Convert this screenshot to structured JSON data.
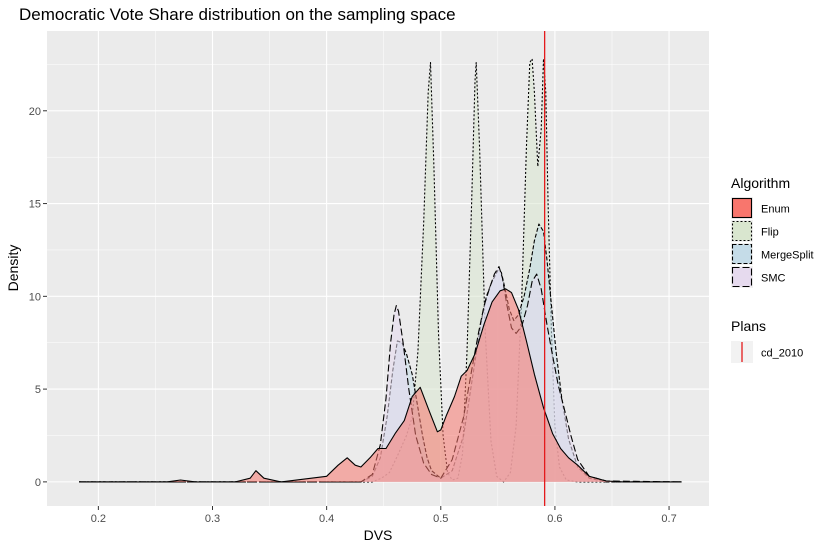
{
  "chart_data": {
    "type": "area",
    "title": "Democratic Vote Share distribution on the sampling space",
    "xlabel": "DVS",
    "ylabel": "Density",
    "xlim": [
      0.155,
      0.735
    ],
    "ylim": [
      -1.3,
      24.3
    ],
    "xticks": [
      0.2,
      0.3,
      0.4,
      0.5,
      0.6,
      0.7
    ],
    "xtick_labels": [
      "0.2",
      "0.3",
      "0.4",
      "0.5",
      "0.6",
      "0.7"
    ],
    "yticks": [
      0,
      5,
      10,
      15,
      20
    ],
    "ytick_labels": [
      "0",
      "5",
      "10",
      "15",
      "20"
    ],
    "grid": true,
    "legend_position": "right",
    "series": [
      {
        "name": "Enum",
        "fill": "#F8766D",
        "line_style": "solid",
        "x": [
          0.183,
          0.26,
          0.272,
          0.285,
          0.32,
          0.333,
          0.338,
          0.345,
          0.36,
          0.4,
          0.41,
          0.418,
          0.425,
          0.43,
          0.438,
          0.445,
          0.452,
          0.46,
          0.468,
          0.475,
          0.482,
          0.49,
          0.497,
          0.5,
          0.505,
          0.512,
          0.518,
          0.523,
          0.53,
          0.538,
          0.545,
          0.552,
          0.557,
          0.562,
          0.568,
          0.575,
          0.582,
          0.59,
          0.598,
          0.605,
          0.612,
          0.62,
          0.63,
          0.645,
          0.66,
          0.711
        ],
        "y": [
          0,
          0,
          0.1,
          0,
          0,
          0.2,
          0.6,
          0.2,
          0,
          0.3,
          0.9,
          1.3,
          0.9,
          0.8,
          1.3,
          1.8,
          1.8,
          2.6,
          3.3,
          4.6,
          5.1,
          3.8,
          2.7,
          2.8,
          3.6,
          4.6,
          5.7,
          6,
          6.9,
          8.5,
          9.7,
          10.3,
          10.4,
          10.2,
          9.3,
          7.6,
          5.8,
          4,
          2.6,
          1.8,
          1.3,
          0.9,
          0.3,
          0.05,
          0,
          0
        ]
      },
      {
        "name": "Flip",
        "fill": "#D9E6CF",
        "line_style": "dotted",
        "x": [
          0.183,
          0.44,
          0.448,
          0.455,
          0.462,
          0.47,
          0.475,
          0.48,
          0.485,
          0.489,
          0.491,
          0.494,
          0.498,
          0.502,
          0.506,
          0.51,
          0.515,
          0.519,
          0.523,
          0.527,
          0.53,
          0.531,
          0.534,
          0.539,
          0.544,
          0.549,
          0.555,
          0.561,
          0.566,
          0.571,
          0.575,
          0.578,
          0.58,
          0.582,
          0.585,
          0.588,
          0.59,
          0.592,
          0.594,
          0.597,
          0.6,
          0.604,
          0.61,
          0.62,
          0.711
        ],
        "y": [
          0,
          0,
          0.2,
          0.5,
          1.4,
          2.5,
          3.5,
          7,
          14,
          21,
          22.6,
          17,
          8,
          2.5,
          0.5,
          0.1,
          0.2,
          1.5,
          7,
          15,
          21.6,
          22.6,
          18,
          8,
          2.2,
          0.3,
          0,
          0.5,
          3,
          10,
          18,
          22.6,
          22.8,
          21,
          17,
          19,
          22.8,
          21,
          15,
          8,
          3,
          0.8,
          0.1,
          0,
          0
        ]
      },
      {
        "name": "MergeSplit",
        "fill": "#C5DCE8",
        "line_style": "longdash",
        "x": [
          0.183,
          0.43,
          0.44,
          0.447,
          0.453,
          0.458,
          0.462,
          0.466,
          0.47,
          0.475,
          0.48,
          0.484,
          0.488,
          0.492,
          0.5,
          0.51,
          0.52,
          0.525,
          0.53,
          0.535,
          0.54,
          0.545,
          0.55,
          0.553,
          0.556,
          0.56,
          0.564,
          0.568,
          0.573,
          0.578,
          0.582,
          0.586,
          0.59,
          0.593,
          0.597,
          0.601,
          0.606,
          0.612,
          0.62,
          0.63,
          0.645,
          0.711
        ],
        "y": [
          0,
          0,
          0.3,
          1.3,
          3.5,
          6,
          7.6,
          7.5,
          6.9,
          5.8,
          4,
          2.5,
          1.3,
          0.6,
          0.2,
          0.6,
          2.5,
          4.5,
          6.5,
          8.5,
          10,
          10.8,
          11.4,
          11.3,
          10.5,
          9.3,
          8.7,
          9,
          10,
          11.5,
          13,
          13.9,
          13.5,
          12,
          9.5,
          7,
          4.5,
          2.3,
          0.8,
          0.2,
          0,
          0
        ]
      },
      {
        "name": "SMC",
        "fill": "#E6DAEE",
        "line_style": "dashed",
        "x": [
          0.183,
          0.43,
          0.44,
          0.447,
          0.452,
          0.456,
          0.459,
          0.461,
          0.463,
          0.467,
          0.472,
          0.478,
          0.485,
          0.492,
          0.5,
          0.51,
          0.52,
          0.527,
          0.533,
          0.538,
          0.543,
          0.547,
          0.551,
          0.554,
          0.558,
          0.562,
          0.566,
          0.571,
          0.576,
          0.58,
          0.584,
          0.588,
          0.593,
          0.598,
          0.603,
          0.608,
          0.614,
          0.62,
          0.63,
          0.645,
          0.711
        ],
        "y": [
          0,
          0,
          0.4,
          2,
          4.5,
          7.5,
          9,
          9.5,
          9.2,
          7.5,
          5,
          2.5,
          1,
          0.4,
          0.2,
          1.2,
          3.5,
          6,
          8,
          9.5,
          10.5,
          11.2,
          11.6,
          11,
          9.5,
          8.3,
          8,
          8.4,
          9.5,
          10.8,
          11.2,
          10.4,
          8.5,
          6.8,
          5.2,
          4,
          2.5,
          1.2,
          0.3,
          0.05,
          0
        ]
      }
    ],
    "vline": {
      "name": "cd_2010",
      "x": 0.591,
      "color": "#E41A1C"
    },
    "legend": {
      "algorithm_title": "Algorithm",
      "plans_title": "Plans",
      "algorithm_items": [
        {
          "label": "Enum",
          "fill": "#F8766D",
          "dash": ""
        },
        {
          "label": "Flip",
          "fill": "#D9E6CF",
          "dash": "2,2"
        },
        {
          "label": "MergeSplit",
          "fill": "#C5DCE8",
          "dash": "4,2"
        },
        {
          "label": "SMC",
          "fill": "#E6DAEE",
          "dash": "7,3"
        }
      ],
      "plans_items": [
        {
          "label": "cd_2010",
          "color": "#E41A1C"
        }
      ]
    }
  }
}
